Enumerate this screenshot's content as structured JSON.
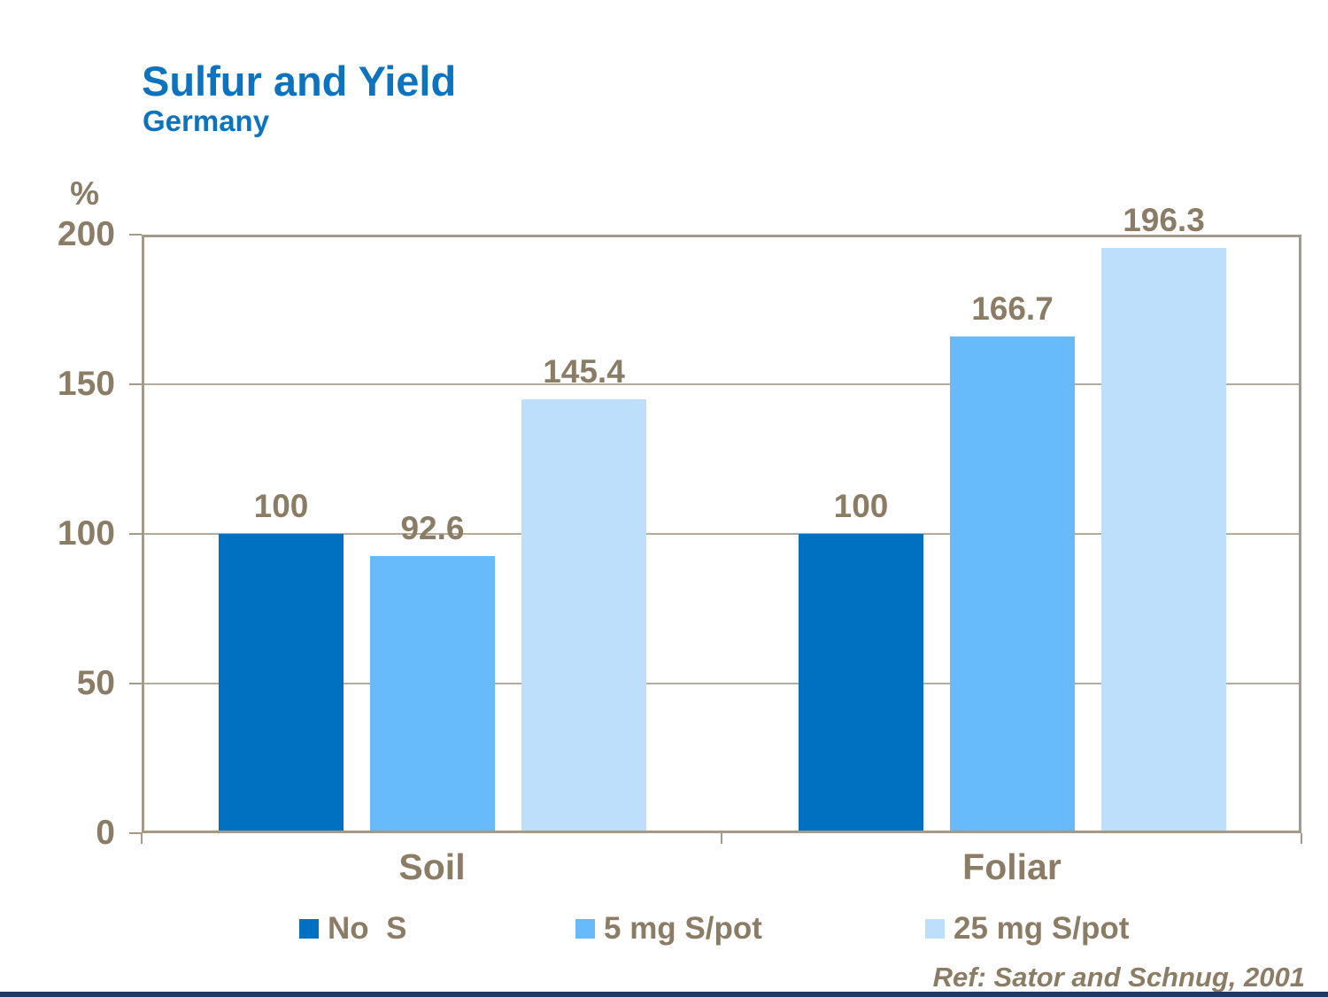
{
  "slide": {
    "title": "Sulfur and Yield",
    "subtitle": "Germany",
    "reference": "Ref: Sator and Schnug, 2001"
  },
  "y_axis": {
    "unit": "%",
    "ticks": [
      {
        "label": "200",
        "value": 200
      },
      {
        "label": "150",
        "value": 150
      },
      {
        "label": "100",
        "value": 100
      },
      {
        "label": "50",
        "value": 50
      },
      {
        "label": "0",
        "value": 0
      }
    ]
  },
  "chart_data": {
    "type": "bar",
    "title": "Sulfur and Yield",
    "subtitle": "Germany",
    "ylabel": "%",
    "ylim": [
      0,
      200
    ],
    "grid": true,
    "legend_position": "bottom",
    "categories": [
      "Soil",
      "Foliar"
    ],
    "series": [
      {
        "name": "No  S",
        "color": "#0070c0",
        "values": [
          100,
          100
        ],
        "labels": [
          "100",
          "100"
        ]
      },
      {
        "name": "5 mg S/pot",
        "color": "#67bbfa",
        "values": [
          92.6,
          166.7
        ],
        "labels": [
          "92.6",
          "166.7"
        ]
      },
      {
        "name": "25 mg S/pot",
        "color": "#bddffc",
        "values": [
          145.4,
          196.3
        ],
        "labels": [
          "145.4",
          "196.3"
        ]
      }
    ]
  },
  "legend": {
    "items": [
      {
        "label": "No  S",
        "color": "#0070c0"
      },
      {
        "label": "5 mg S/pot",
        "color": "#67bbfa"
      },
      {
        "label": "25 mg S/pot",
        "color": "#bddffc"
      }
    ]
  },
  "colors": {
    "title_blue": "#0d73be",
    "text_brown": "#8b7c66",
    "axis_frame": "#a59a8a",
    "gridline": "#b5ab9d",
    "bottom_rule_navy": "#1f3864",
    "background": "#ffffff"
  }
}
